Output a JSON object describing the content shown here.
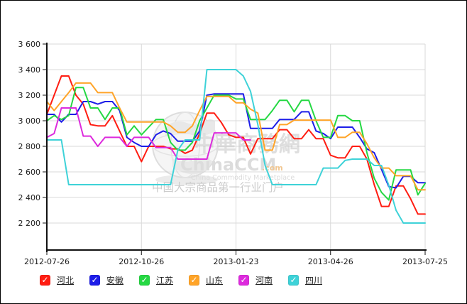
{
  "page": {
    "background": "#ffffff",
    "border_color": "#000000"
  },
  "watermark": {
    "brand_cn": "中華商務網",
    "brand_en": "ChinaCCM",
    "domain_suffix": ".com",
    "tagline_en": "China Commodity Marketplace",
    "tagline_cn": "中国大宗商品第一行业门户",
    "globe_icon_color": "#d6d6d6"
  },
  "chart_data": {
    "type": "line",
    "title": "",
    "xlabel": "",
    "ylabel": "",
    "interval": "weekly",
    "points_per_series": 53,
    "x_start_date": "2012-07-26",
    "x_end_date": "2013-07-25",
    "x_tick_labels": [
      "2012-07-26",
      "2012-10-26",
      "2013-01-23",
      "2013-04-26",
      "2013-07-25"
    ],
    "y_ticks": [
      2200,
      2400,
      2600,
      2800,
      3000,
      3200,
      3400,
      3600
    ],
    "y_tick_labels": [
      "2 200",
      "2 400",
      "2 600",
      "2 800",
      "3 000",
      "3 200",
      "3 400",
      "3 600"
    ],
    "ylim": [
      2000,
      3600
    ],
    "grid": true,
    "legend_position": "bottom",
    "grid_color": "#d9d9d9",
    "axis_color": "#111111",
    "series": [
      {
        "id": "hebei",
        "label": "河北",
        "color": "#ff1d12",
        "values": [
          3050,
          3200,
          3350,
          3350,
          3200,
          3130,
          2970,
          2960,
          2960,
          3040,
          2920,
          2800,
          2800,
          2680,
          2800,
          2800,
          2800,
          2780,
          2780,
          2745,
          2770,
          2900,
          3060,
          3060,
          2985,
          2890,
          2870,
          2870,
          2740,
          2860,
          2860,
          2860,
          2930,
          2930,
          2860,
          2860,
          2930,
          2860,
          2860,
          2730,
          2710,
          2710,
          2800,
          2800,
          2700,
          2500,
          2330,
          2330,
          2490,
          2490,
          2390,
          2270,
          2270
        ]
      },
      {
        "id": "anhui",
        "label": "安徽",
        "color": "#1d1de8",
        "values": [
          3050,
          3050,
          2990,
          3050,
          3050,
          3150,
          3150,
          3130,
          3150,
          3150,
          3080,
          2870,
          2830,
          2800,
          2800,
          2890,
          2920,
          2900,
          2840,
          2840,
          2840,
          2920,
          3200,
          3210,
          3210,
          3210,
          3210,
          3210,
          2940,
          2940,
          2940,
          2940,
          3010,
          3010,
          3010,
          3070,
          3070,
          2920,
          2900,
          2860,
          2950,
          2950,
          2950,
          2870,
          2780,
          2750,
          2620,
          2485,
          2475,
          2565,
          2565,
          2515,
          2515
        ]
      },
      {
        "id": "jiangsu",
        "label": "江苏",
        "color": "#25d843",
        "values": [
          3000,
          3040,
          3010,
          3040,
          3260,
          3260,
          3100,
          3100,
          3010,
          3100,
          3100,
          2890,
          2960,
          2890,
          2950,
          3010,
          3010,
          2830,
          2770,
          2770,
          2830,
          3000,
          3100,
          3200,
          3200,
          3200,
          3170,
          3170,
          3010,
          3010,
          3010,
          3080,
          3160,
          3160,
          3070,
          3160,
          3160,
          3000,
          2870,
          2870,
          3040,
          3040,
          3000,
          3000,
          2750,
          2550,
          2440,
          2380,
          2615,
          2615,
          2615,
          2420,
          2510
        ]
      },
      {
        "id": "shandong",
        "label": "山东",
        "color": "#ffa428",
        "values": [
          3150,
          3080,
          3150,
          3220,
          3295,
          3295,
          3295,
          3220,
          3220,
          3220,
          3100,
          2990,
          2990,
          2990,
          2990,
          2990,
          2990,
          2960,
          2910,
          2910,
          2960,
          3080,
          3190,
          3190,
          3190,
          3190,
          3140,
          3140,
          3090,
          3060,
          2770,
          2770,
          2970,
          2970,
          3005,
          3005,
          3005,
          3005,
          3005,
          3005,
          2870,
          2870,
          2910,
          2910,
          2820,
          2710,
          2630,
          2630,
          2570,
          2570,
          2570,
          2460,
          2460
        ]
      },
      {
        "id": "henan",
        "label": "河南",
        "color": "#dd2add",
        "values": [
          2870,
          2900,
          3100,
          3100,
          3100,
          2880,
          2880,
          2800,
          2870,
          2870,
          2870,
          2800,
          2870,
          2870,
          2870,
          2790,
          2790,
          2790,
          2700,
          2700,
          2700,
          2700,
          2700,
          2905,
          2905,
          2905,
          2905,
          2850,
          2850,
          null,
          null,
          null,
          null,
          null,
          null,
          null,
          null,
          null,
          null,
          null,
          null,
          null,
          null,
          null,
          null,
          null,
          null,
          null,
          null,
          null,
          null,
          null,
          null
        ]
      },
      {
        "id": "sichuan",
        "label": "四川",
        "color": "#3ed2d8",
        "values": [
          2850,
          2850,
          2850,
          2500,
          2500,
          2500,
          2500,
          2500,
          2500,
          2500,
          2500,
          2500,
          2500,
          2500,
          2500,
          2500,
          2500,
          2500,
          2770,
          2850,
          2850,
          2850,
          3400,
          3400,
          3400,
          3400,
          3400,
          3350,
          3230,
          2970,
          2650,
          2500,
          2500,
          2500,
          2500,
          2500,
          2500,
          2500,
          2630,
          2630,
          2630,
          2690,
          2700,
          2700,
          2700,
          2650,
          2650,
          2495,
          2300,
          2200,
          2200,
          2200,
          2200
        ]
      }
    ]
  }
}
